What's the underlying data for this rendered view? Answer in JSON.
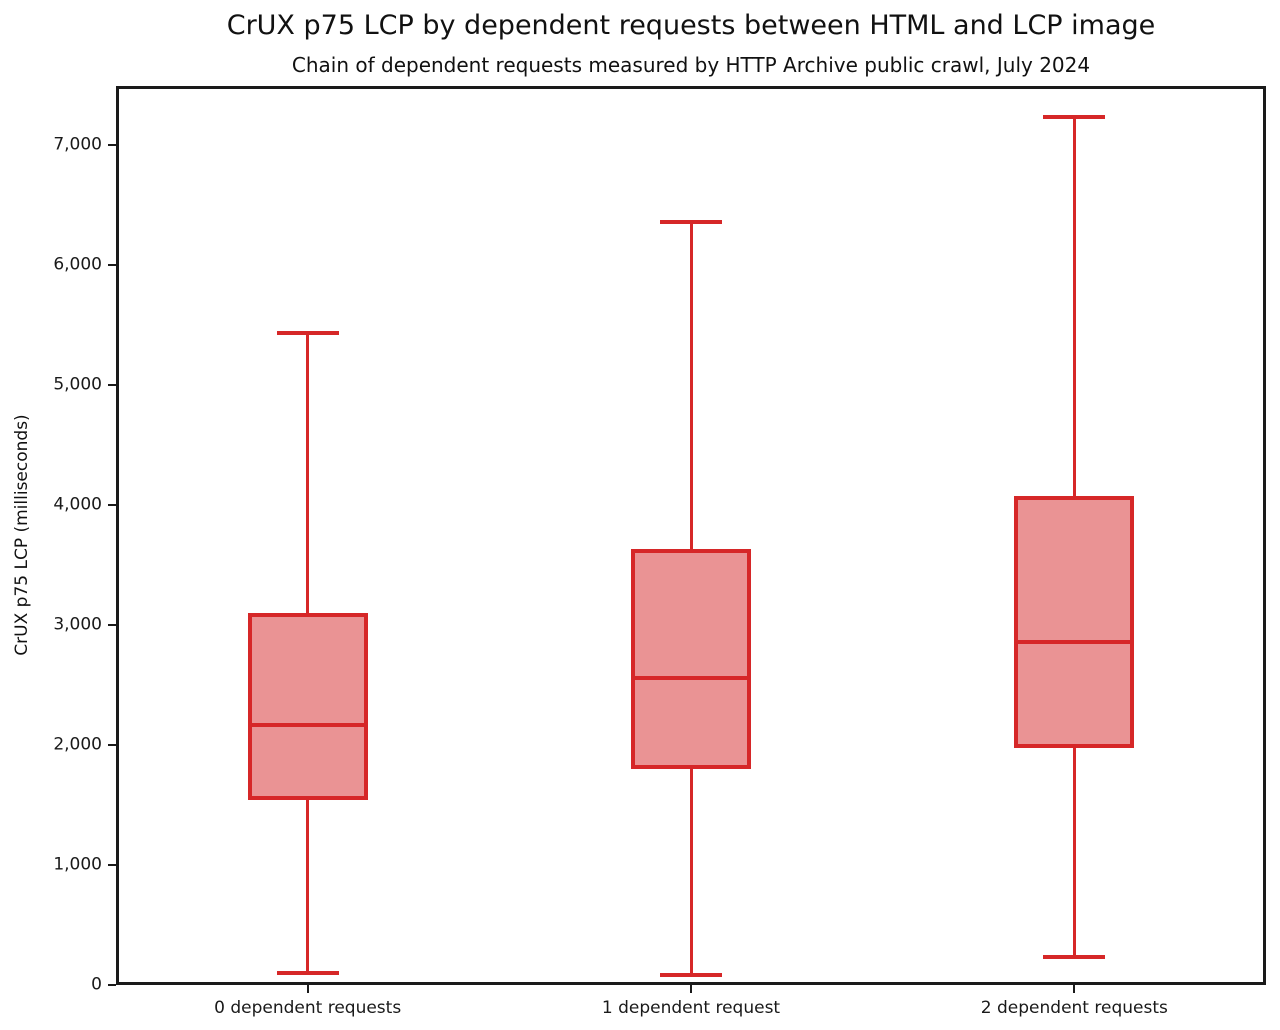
{
  "chart_data": {
    "type": "boxplot",
    "title": "CrUX p75 LCP by dependent requests between HTML and LCP image",
    "subtitle": "Chain of dependent requests measured by HTTP Archive public crawl, July 2024",
    "ylabel": "CrUX p75 LCP (milliseconds)",
    "xlabel": "",
    "categories": [
      "0 dependent requests",
      "1 dependent request",
      "2 dependent requests"
    ],
    "series": [
      {
        "category": "0 dependent requests",
        "whisker_low": 100,
        "q1": 1540,
        "median": 2165,
        "q3": 3100,
        "whisker_high": 5430
      },
      {
        "category": "1 dependent request",
        "whisker_low": 85,
        "q1": 1800,
        "median": 2555,
        "q3": 3630,
        "whisker_high": 6360
      },
      {
        "category": "2 dependent requests",
        "whisker_low": 230,
        "q1": 1975,
        "median": 2855,
        "q3": 4075,
        "whisker_high": 7230
      }
    ],
    "ylim": [
      0,
      7490
    ],
    "yticks": [
      0,
      1000,
      2000,
      3000,
      4000,
      5000,
      6000,
      7000
    ],
    "ytick_labels": [
      "0",
      "1,000",
      "2,000",
      "3,000",
      "4,000",
      "5,000",
      "6,000",
      "7,000"
    ],
    "grid": false,
    "legend": "none",
    "colors": {
      "box_edge": "#d62728",
      "box_fill": "#ea9394",
      "axis": "#1a1a1a",
      "text": "#111111"
    }
  }
}
